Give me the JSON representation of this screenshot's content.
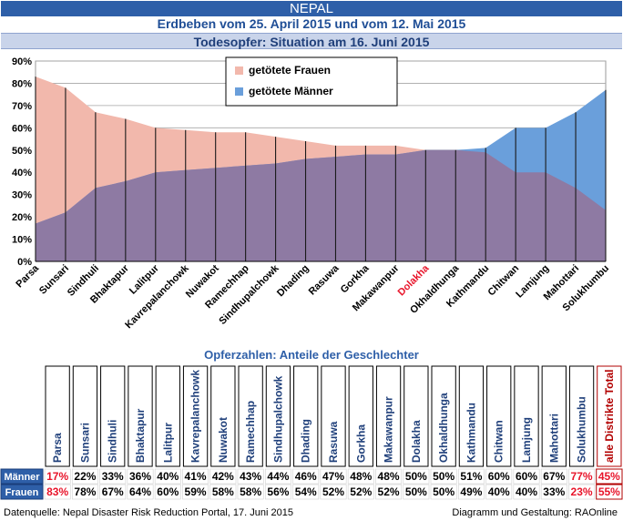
{
  "header": {
    "country": "NEPAL",
    "subtitle": "Erdbeben vom 25. April 2015 und vom 12. Mai 2015",
    "situation": "Todesopfer: Situation am 16. Juni 2015"
  },
  "colors": {
    "women": "#f2b8ac",
    "men": "#6a9fdb",
    "overlap": "#8e7aa3",
    "highlight": "#e8142a",
    "header_blue": "#2e5fa8"
  },
  "chart_data": {
    "type": "area",
    "categories": [
      "Parsa",
      "Sunsari",
      "Sindhuli",
      "Bhaktapur",
      "Lalitpur",
      "Kavrepalanchowk",
      "Nuwakot",
      "Ramechhap",
      "Sindhupalchowk",
      "Dhading",
      "Rasuwa",
      "Gorkha",
      "Makawanpur",
      "Dolakha",
      "Okhaldhunga",
      "Kathmandu",
      "Chitwan",
      "Lamjung",
      "Mahottari",
      "Solukhumbu"
    ],
    "highlight_category": "Dolakha",
    "series": [
      {
        "name": "getötete Frauen",
        "values": [
          83,
          78,
          67,
          64,
          60,
          59,
          58,
          58,
          56,
          54,
          52,
          52,
          52,
          50,
          50,
          49,
          40,
          40,
          33,
          23
        ]
      },
      {
        "name": "getötete Männer",
        "values": [
          17,
          22,
          33,
          36,
          40,
          41,
          42,
          43,
          44,
          46,
          47,
          48,
          48,
          50,
          50,
          51,
          60,
          60,
          67,
          77
        ]
      }
    ],
    "ylim": [
      0,
      90
    ],
    "yticks": [
      "0%",
      "10%",
      "20%",
      "30%",
      "40%",
      "50%",
      "60%",
      "70%",
      "80%",
      "90%"
    ],
    "grid": true,
    "legend_position": "top-center"
  },
  "table": {
    "title": "Opferzahlen: Anteile der Geschlechter",
    "row_labels": [
      "Männer",
      "Frauen"
    ],
    "columns": [
      "Parsa",
      "Sunsari",
      "Sindhuli",
      "Bhaktapur",
      "Lalitpur",
      "Kavrepalanchowk",
      "Nuwakot",
      "Ramechhap",
      "Sindhupalchowk",
      "Dhading",
      "Rasuwa",
      "Gorkha",
      "Makawanpur",
      "Dolakha",
      "Okhaldhunga",
      "Kathmandu",
      "Chitwan",
      "Lamjung",
      "Mahottari",
      "Solukhumbu",
      "alle Distrikte Total"
    ],
    "men": [
      "17%",
      "22%",
      "33%",
      "36%",
      "40%",
      "41%",
      "42%",
      "43%",
      "44%",
      "46%",
      "47%",
      "48%",
      "48%",
      "50%",
      "50%",
      "51%",
      "60%",
      "60%",
      "67%",
      "77%",
      "45%"
    ],
    "women": [
      "83%",
      "78%",
      "67%",
      "64%",
      "60%",
      "59%",
      "58%",
      "58%",
      "56%",
      "54%",
      "52%",
      "52%",
      "52%",
      "50%",
      "50%",
      "49%",
      "40%",
      "40%",
      "33%",
      "23%",
      "55%"
    ],
    "red_men": [
      0,
      19,
      20
    ],
    "red_women": [
      0,
      19,
      20
    ]
  },
  "footer": {
    "source": "Datenquelle:  Nepal Disaster Risk Reduction Portal, 17. Juni  2015",
    "credit": "Diagramm und Gestaltung: RAOnline"
  }
}
